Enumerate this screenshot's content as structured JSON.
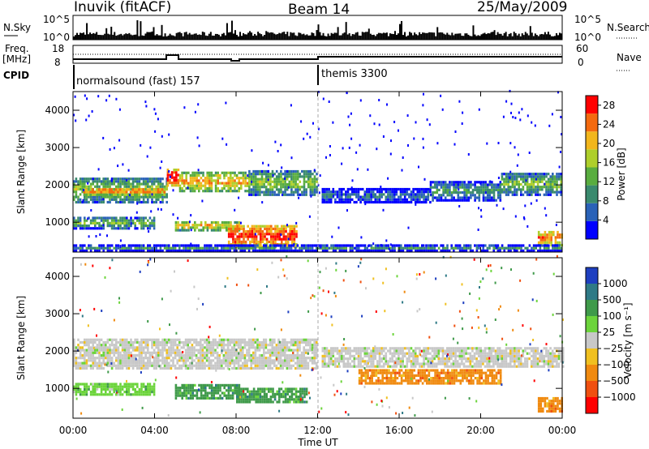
{
  "header": {
    "station": "Inuvik (fitACF)",
    "beam": "Beam 14",
    "date": "25/May/2009"
  },
  "strips": {
    "nsky_label": "N.Sky",
    "nsky_ticks": [
      "10^5",
      "10^0"
    ],
    "nsearch_label": "N.Search",
    "freq_label_1": "Freq.",
    "freq_label_2": "[MHz]",
    "freq_ticks": [
      "18",
      "8"
    ],
    "nave_label": "Nave",
    "nave_ticks": [
      "60",
      "0"
    ],
    "cpid_label": "CPID",
    "cpid_segments": [
      {
        "label": "normalsound (fast) 157",
        "start_hour": 0
      },
      {
        "label": "themis 3300",
        "start_hour": 12
      }
    ]
  },
  "colors": {
    "power": [
      "#0000ff",
      "#2a62b8",
      "#3a8a6e",
      "#59ad3f",
      "#aecf2b",
      "#f2b61c",
      "#f46a0f",
      "#ff0000"
    ],
    "velocity": [
      "#1e3fc0",
      "#2f7a86",
      "#3f9a4a",
      "#6cd43b",
      "#c8c8c8",
      "#f0c020",
      "#f08a10",
      "#f05010",
      "#ff0000"
    ],
    "cpid_line": "#000000"
  },
  "chart_data": [
    {
      "type": "heatmap",
      "title": "",
      "xlabel": "Time UT",
      "ylabel": "Slant Range [km]",
      "xlim": [
        "00:00",
        "24:00"
      ],
      "ylim": [
        200,
        4500
      ],
      "x_ticks": [
        "00:00",
        "04:00",
        "08:00",
        "12:00",
        "16:00",
        "20:00",
        "00:00"
      ],
      "y_ticks": [
        "1000",
        "2000",
        "3000",
        "4000"
      ],
      "colorbar": {
        "label": "Power [dB]",
        "ticks": [
          "4",
          "8",
          "12",
          "16",
          "20",
          "24",
          "28"
        ],
        "range": [
          0,
          30
        ]
      },
      "bands": [
        {
          "t0": 0.0,
          "t1": 4.6,
          "r0": 1500,
          "r1": 2150,
          "level": 0.55
        },
        {
          "t0": 0.5,
          "t1": 4.5,
          "r0": 1700,
          "r1": 1900,
          "level": 0.85
        },
        {
          "t0": 4.6,
          "t1": 5.2,
          "r0": 1950,
          "r1": 2400,
          "level": 1.0
        },
        {
          "t0": 5.2,
          "t1": 8.6,
          "r0": 1800,
          "r1": 2300,
          "level": 0.75
        },
        {
          "t0": 8.6,
          "t1": 12.0,
          "r0": 1700,
          "r1": 2350,
          "level": 0.55
        },
        {
          "t0": 0.0,
          "t1": 4.0,
          "r0": 800,
          "r1": 1100,
          "level": 0.5
        },
        {
          "t0": 5.0,
          "t1": 8.2,
          "r0": 750,
          "r1": 1000,
          "level": 0.7
        },
        {
          "t0": 7.6,
          "t1": 11.0,
          "r0": 300,
          "r1": 900,
          "level": 0.95
        },
        {
          "t0": 12.2,
          "t1": 17.5,
          "r0": 1500,
          "r1": 1850,
          "level": 0.3
        },
        {
          "t0": 17.5,
          "t1": 21.0,
          "r0": 1550,
          "r1": 2050,
          "level": 0.4
        },
        {
          "t0": 21.0,
          "t1": 24.0,
          "r0": 1700,
          "r1": 2300,
          "level": 0.5
        },
        {
          "t0": 22.8,
          "t1": 24.0,
          "r0": 350,
          "r1": 750,
          "level": 0.85
        },
        {
          "t0": 0.0,
          "t1": 24.0,
          "r0": 200,
          "r1": 350,
          "level": 0.35
        }
      ]
    },
    {
      "type": "heatmap",
      "title": "",
      "xlabel": "Time UT",
      "ylabel": "Slant Range [km]",
      "xlim": [
        "00:00",
        "24:00"
      ],
      "ylim": [
        200,
        4500
      ],
      "x_ticks": [
        "00:00",
        "04:00",
        "08:00",
        "12:00",
        "16:00",
        "20:00",
        "00:00"
      ],
      "y_ticks": [
        "1000",
        "2000",
        "3000",
        "4000"
      ],
      "colorbar": {
        "label": "Velocity [m s⁻¹]",
        "ticks": [
          "1000",
          "500",
          "100",
          "25",
          "−25",
          "−100",
          "−500",
          "−1000"
        ]
      },
      "bands": [
        {
          "t0": 0.0,
          "t1": 12.0,
          "r0": 1500,
          "r1": 2300,
          "class": 4
        },
        {
          "t0": 12.2,
          "t1": 24.0,
          "r0": 1550,
          "r1": 2100,
          "class": 4
        },
        {
          "t0": 0.0,
          "t1": 4.0,
          "r0": 800,
          "r1": 1100,
          "class": 3
        },
        {
          "t0": 5.0,
          "t1": 8.2,
          "r0": 700,
          "r1": 1050,
          "class": 2
        },
        {
          "t0": 8.0,
          "t1": 11.5,
          "r0": 600,
          "r1": 1000,
          "class": 2
        },
        {
          "t0": 14.0,
          "t1": 21.0,
          "r0": 1100,
          "r1": 1450,
          "class": 6
        },
        {
          "t0": 22.8,
          "t1": 24.0,
          "r0": 350,
          "r1": 750,
          "class": 6
        }
      ]
    }
  ]
}
